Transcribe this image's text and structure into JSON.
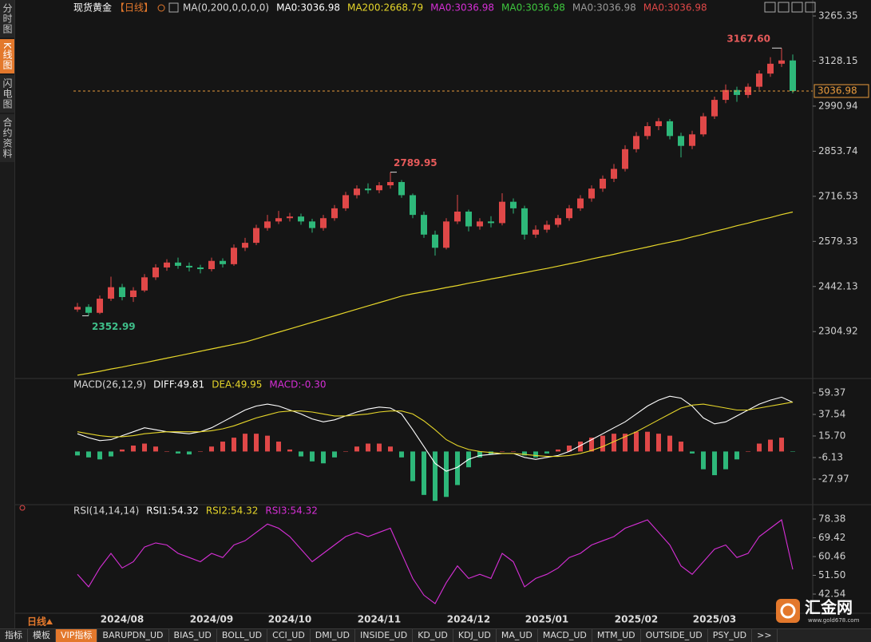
{
  "sidebar": {
    "tabs": [
      "分时图",
      "K线图",
      "闪电图",
      "合约资料"
    ],
    "active": 1
  },
  "chart_data": [
    {
      "type": "candlestick",
      "title": "现货黄金",
      "period": "【日线】",
      "legend": [
        {
          "text": "MA(0,200,0,0,0,0)",
          "color": "#d8d8d8"
        },
        {
          "text": "MA0:3036.98",
          "color": "#ffffff"
        },
        {
          "text": "MA200:2668.79",
          "color": "#e6d62a"
        },
        {
          "text": "MA0:3036.98",
          "color": "#d62fd6"
        },
        {
          "text": "MA0:3036.98",
          "color": "#3ec83e"
        },
        {
          "text": "MA0:3036.98",
          "color": "#9a9a9a"
        },
        {
          "text": "MA0:3036.98",
          "color": "#e04848"
        }
      ],
      "up_color": "#e04848",
      "down_color": "#2eb87a",
      "open": [
        2372,
        2380,
        2362,
        2405,
        2440,
        2410,
        2430,
        2470,
        2500,
        2515,
        2505,
        2500,
        2495,
        2520,
        2510,
        2560,
        2575,
        2620,
        2640,
        2650,
        2655,
        2640,
        2620,
        2650,
        2680,
        2720,
        2740,
        2735,
        2750,
        2760,
        2720,
        2660,
        2600,
        2560,
        2640,
        2670,
        2625,
        2640,
        2635,
        2700,
        2680,
        2600,
        2615,
        2630,
        2650,
        2680,
        2710,
        2740,
        2770,
        2800,
        2860,
        2900,
        2930,
        2945,
        2900,
        2870,
        2905,
        2960,
        3010,
        3040,
        3025,
        3050,
        3090,
        3120,
        3130
      ],
      "high": [
        2392,
        2388,
        2415,
        2472,
        2450,
        2440,
        2480,
        2510,
        2525,
        2530,
        2515,
        2508,
        2530,
        2528,
        2570,
        2590,
        2630,
        2660,
        2672,
        2666,
        2664,
        2648,
        2660,
        2690,
        2730,
        2750,
        2756,
        2760,
        2789.95,
        2766,
        2725,
        2670,
        2612,
        2650,
        2721,
        2676,
        2650,
        2656,
        2726,
        2710,
        2688,
        2628,
        2642,
        2660,
        2690,
        2720,
        2750,
        2780,
        2815,
        2872,
        2912,
        2942,
        2955,
        2952,
        2910,
        2916,
        2970,
        3020,
        3057,
        3050,
        3060,
        3100,
        3140,
        3167.6,
        3148
      ],
      "low": [
        2365,
        2352.99,
        2358,
        2398,
        2400,
        2395,
        2425,
        2462,
        2490,
        2496,
        2488,
        2482,
        2488,
        2500,
        2505,
        2550,
        2568,
        2612,
        2632,
        2640,
        2630,
        2606,
        2612,
        2642,
        2672,
        2710,
        2725,
        2726,
        2740,
        2712,
        2650,
        2590,
        2536,
        2555,
        2632,
        2610,
        2615,
        2622,
        2628,
        2664,
        2585,
        2590,
        2606,
        2622,
        2642,
        2672,
        2700,
        2730,
        2760,
        2792,
        2850,
        2890,
        2918,
        2890,
        2835,
        2860,
        2898,
        2952,
        3000,
        3004,
        3016,
        3040,
        3080,
        3110,
        3030
      ],
      "close": [
        2380,
        2362,
        2405,
        2440,
        2410,
        2430,
        2470,
        2500,
        2515,
        2505,
        2500,
        2495,
        2520,
        2510,
        2560,
        2575,
        2620,
        2640,
        2650,
        2655,
        2640,
        2620,
        2650,
        2680,
        2720,
        2740,
        2735,
        2750,
        2760,
        2720,
        2660,
        2600,
        2560,
        2640,
        2670,
        2625,
        2640,
        2635,
        2700,
        2680,
        2600,
        2615,
        2630,
        2650,
        2680,
        2710,
        2740,
        2770,
        2800,
        2860,
        2900,
        2930,
        2945,
        2900,
        2870,
        2905,
        2960,
        3010,
        3040,
        3025,
        3050,
        3090,
        3120,
        3130,
        3036.98
      ],
      "series": [
        {
          "name": "MA200",
          "color": "#e6d62a",
          "values": [
            2172,
            2178,
            2184,
            2191,
            2197,
            2204,
            2210,
            2217,
            2224,
            2231,
            2238,
            2245,
            2252,
            2259,
            2266,
            2273,
            2283,
            2293,
            2303,
            2313,
            2323,
            2333,
            2343,
            2353,
            2363,
            2373,
            2383,
            2393,
            2403,
            2413,
            2420,
            2426,
            2432,
            2439,
            2445,
            2452,
            2458,
            2465,
            2471,
            2478,
            2484,
            2491,
            2497,
            2504,
            2511,
            2518,
            2526,
            2533,
            2540,
            2548,
            2555,
            2562,
            2570,
            2577,
            2584,
            2593,
            2601,
            2610,
            2618,
            2627,
            2635,
            2644,
            2652,
            2661,
            2668.79
          ]
        }
      ],
      "annotations": [
        {
          "value": 3167.6,
          "label": "3167.60",
          "candle": 63,
          "color": "#e65a5a"
        },
        {
          "value": 2789.95,
          "label": "2789.95",
          "candle": 28,
          "color": "#e65a5a"
        },
        {
          "value": 2352.99,
          "label": "2352.99",
          "candle": 1,
          "color": "#3fbf8a"
        }
      ],
      "price_line_color": "#e89a3c",
      "ylim": [
        2167,
        3294.5
      ],
      "yticks": [
        3265.35,
        3128.15,
        2990.94,
        2853.74,
        2716.53,
        2579.33,
        2442.13,
        2304.92
      ],
      "x_labels": [
        {
          "label": "2024/08",
          "candle": 4
        },
        {
          "label": "2024/09",
          "candle": 12
        },
        {
          "label": "2024/10",
          "candle": 19
        },
        {
          "label": "2024/11",
          "candle": 27
        },
        {
          "label": "2024/12",
          "candle": 35
        },
        {
          "label": "2025/01",
          "candle": 42
        },
        {
          "label": "2025/02",
          "candle": 50
        },
        {
          "label": "2025/03",
          "candle": 57
        }
      ]
    },
    {
      "type": "macd",
      "legend": [
        {
          "text": "MACD(26,12,9)",
          "color": "#d8d8d8"
        },
        {
          "text": "DIFF:49.81",
          "color": "#ffffff"
        },
        {
          "text": "DEA:49.95",
          "color": "#e6d62a"
        },
        {
          "text": "MACD:-0.30",
          "color": "#d62fd6"
        }
      ],
      "series": [
        {
          "name": "DIFF",
          "color": "#ffffff",
          "values": [
            18,
            14,
            11,
            12,
            16,
            20,
            24,
            22,
            20,
            19,
            18,
            20,
            24,
            30,
            36,
            42,
            46,
            48,
            46,
            42,
            38,
            33,
            30,
            32,
            36,
            40,
            43,
            45,
            44,
            38,
            22,
            5,
            -12,
            -20,
            -16,
            -8,
            -4,
            -3,
            -2,
            -2,
            -6,
            -8,
            -6,
            -4,
            0,
            6,
            12,
            18,
            24,
            30,
            38,
            46,
            52,
            56,
            54,
            46,
            34,
            28,
            30,
            36,
            42,
            48,
            52,
            55,
            49.81
          ]
        },
        {
          "name": "DEA",
          "color": "#e6d62a",
          "values": [
            20,
            18,
            16,
            15,
            15,
            16,
            18,
            19,
            20,
            20,
            20,
            20,
            21,
            23,
            26,
            30,
            34,
            37,
            40,
            41,
            41,
            40,
            38,
            36,
            36,
            37,
            38,
            40,
            41,
            41,
            38,
            31,
            22,
            12,
            6,
            2,
            0,
            -1,
            -2,
            -2,
            -3,
            -4,
            -5,
            -5,
            -4,
            -2,
            1,
            5,
            10,
            15,
            20,
            26,
            32,
            38,
            44,
            47,
            48,
            46,
            44,
            42,
            42,
            44,
            46,
            48,
            49.95
          ]
        }
      ],
      "histogram": {
        "name": "MACD",
        "values": [
          -4,
          -6,
          -8,
          -5,
          2,
          6,
          8,
          5,
          0,
          -2,
          -3,
          0,
          5,
          10,
          14,
          18,
          18,
          16,
          10,
          2,
          -5,
          -10,
          -12,
          -6,
          0,
          5,
          8,
          8,
          5,
          -6,
          -30,
          -44,
          -50,
          -46,
          -34,
          -16,
          -6,
          -3,
          0,
          0,
          -4,
          -6,
          -2,
          2,
          6,
          10,
          14,
          16,
          18,
          18,
          20,
          20,
          18,
          16,
          10,
          -2,
          -18,
          -24,
          -18,
          -8,
          0,
          8,
          12,
          14,
          -0.3
        ]
      },
      "up_color": "#e04848",
      "down_color": "#2eb87a",
      "ylim": [
        -52.23,
        70.69
      ],
      "yticks": [
        59.37,
        37.54,
        {
          "value": 15.7,
          "label": "15.70"
        },
        -6.13,
        -27.97
      ]
    },
    {
      "type": "rsi",
      "legend": [
        {
          "text": "RSI(14,14,14)",
          "color": "#d8d8d8"
        },
        {
          "text": "RSI1:54.32",
          "color": "#ffffff"
        },
        {
          "text": "RSI2:54.32",
          "color": "#e6d62a"
        },
        {
          "text": "RSI3:54.32",
          "color": "#d62fd6"
        }
      ],
      "series": [
        {
          "name": "RSI1",
          "color": "#d62fd6",
          "values": [
            52,
            46,
            55,
            62,
            55,
            58,
            65,
            67,
            66,
            62,
            60,
            58,
            62,
            60,
            66,
            68,
            72,
            76,
            74,
            70,
            64,
            58,
            62,
            66,
            70,
            72,
            70,
            72,
            74,
            62,
            50,
            42,
            38,
            48,
            56,
            50,
            52,
            50,
            62,
            58,
            46,
            50,
            52,
            55,
            60,
            62,
            66,
            68,
            70,
            74,
            76,
            78,
            72,
            66,
            56,
            52,
            58,
            64,
            66,
            60,
            62,
            70,
            74,
            78,
            54.32
          ]
        }
      ],
      "ylim": [
        34.15,
        82.96
      ],
      "yticks": [
        78.38,
        69.42,
        60.46,
        {
          "value": 51.5,
          "label": "51.50"
        },
        42.54
      ]
    }
  ],
  "period_button": "日线",
  "toolbar": {
    "tabs": [
      "指标",
      "模板",
      "VIP指标",
      "BARUPDN_UD",
      "BIAS_UD",
      "BOLL_UD",
      "CCI_UD",
      "DMI_UD",
      "INSIDE_UD",
      "KD_UD",
      "KDJ_UD",
      "MA_UD",
      "MACD_UD",
      "MTM_UD",
      "OUTSIDE_UD",
      "PSY_UD",
      ">>"
    ],
    "active": 2
  },
  "logo": {
    "name": "汇金网",
    "url": "www.gold678.com"
  }
}
